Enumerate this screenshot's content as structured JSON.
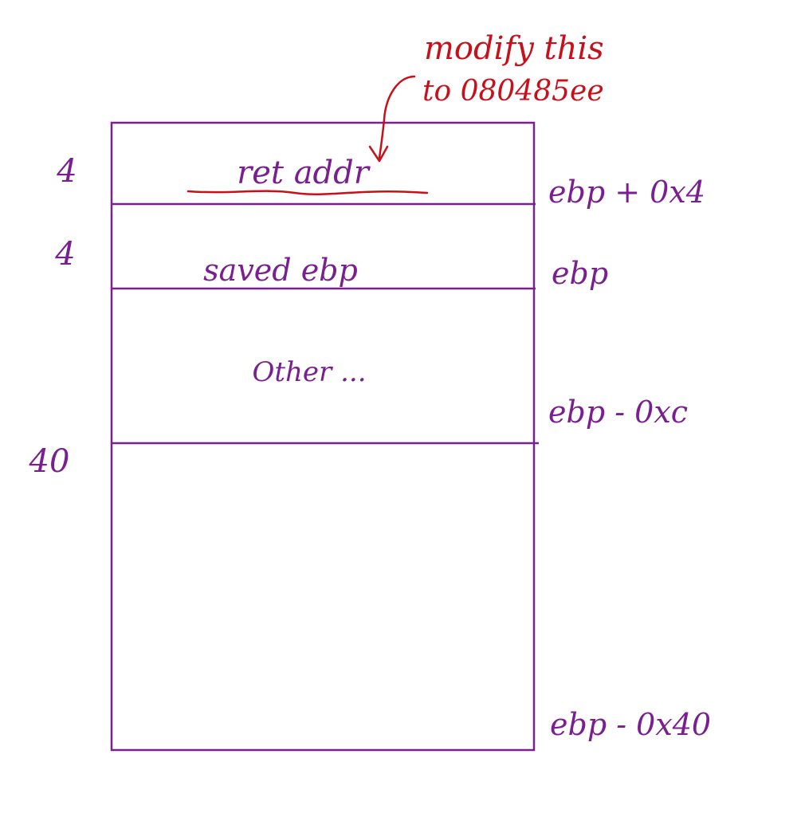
{
  "colors": {
    "stack": "#7a1f8f",
    "annotation": "#c8101a",
    "background": "#ffffff"
  },
  "annotation": {
    "line1": "modify this",
    "line2": "to 080485ee"
  },
  "frames": [
    {
      "label": "ret addr",
      "size": "4",
      "offset": "ebp + 0x4",
      "highlighted": true
    },
    {
      "label": "saved ebp",
      "size": "4",
      "offset": "ebp"
    },
    {
      "label": "Other ...",
      "size": "",
      "offset": "ebp - 0xc"
    },
    {
      "label": "",
      "size": "40",
      "offset": "ebp - 0x40"
    }
  ]
}
